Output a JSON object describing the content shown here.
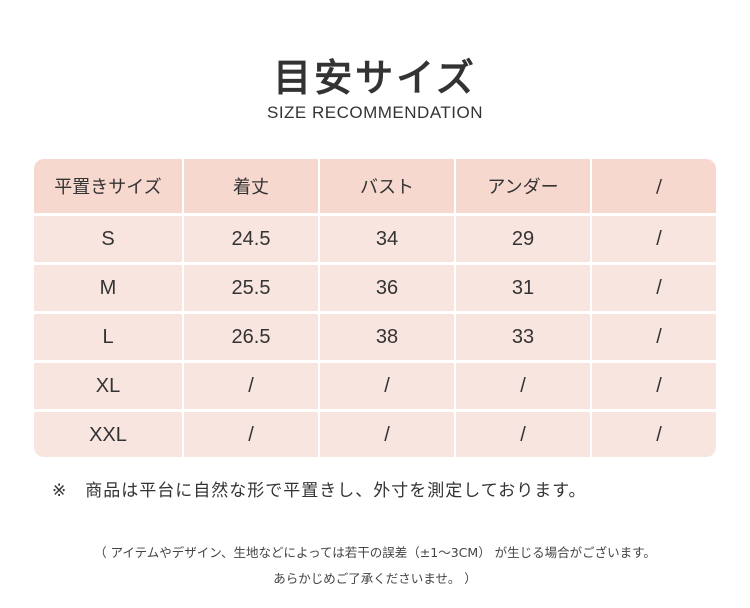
{
  "header": {
    "title": "目安サイズ",
    "subtitle": "SIZE RECOMMENDATION"
  },
  "table": {
    "columns": [
      "平置きサイズ",
      "着丈",
      "バスト",
      "アンダー",
      "/"
    ],
    "rows": [
      [
        "S",
        "24.5",
        "34",
        "29",
        "/"
      ],
      [
        "M",
        "25.5",
        "36",
        "31",
        "/"
      ],
      [
        "L",
        "26.5",
        "38",
        "33",
        "/"
      ],
      [
        "XL",
        "/",
        "/",
        "/",
        "/"
      ],
      [
        "XXL",
        "/",
        "/",
        "/",
        "/"
      ]
    ]
  },
  "note": {
    "mark": "※",
    "text": "商品は平台に自然な形で平置きし、外寸を測定しております。"
  },
  "disclaimer": {
    "line1": "（ アイテムやデザイン、生地などによっては若干の誤差（±1～3CM） が生じる場合がございます。",
    "line2": "あらかじめご了承くださいませ。 ）"
  },
  "colors": {
    "header_cell": "#f6d8cf",
    "body_cell": "#f9e5df"
  }
}
